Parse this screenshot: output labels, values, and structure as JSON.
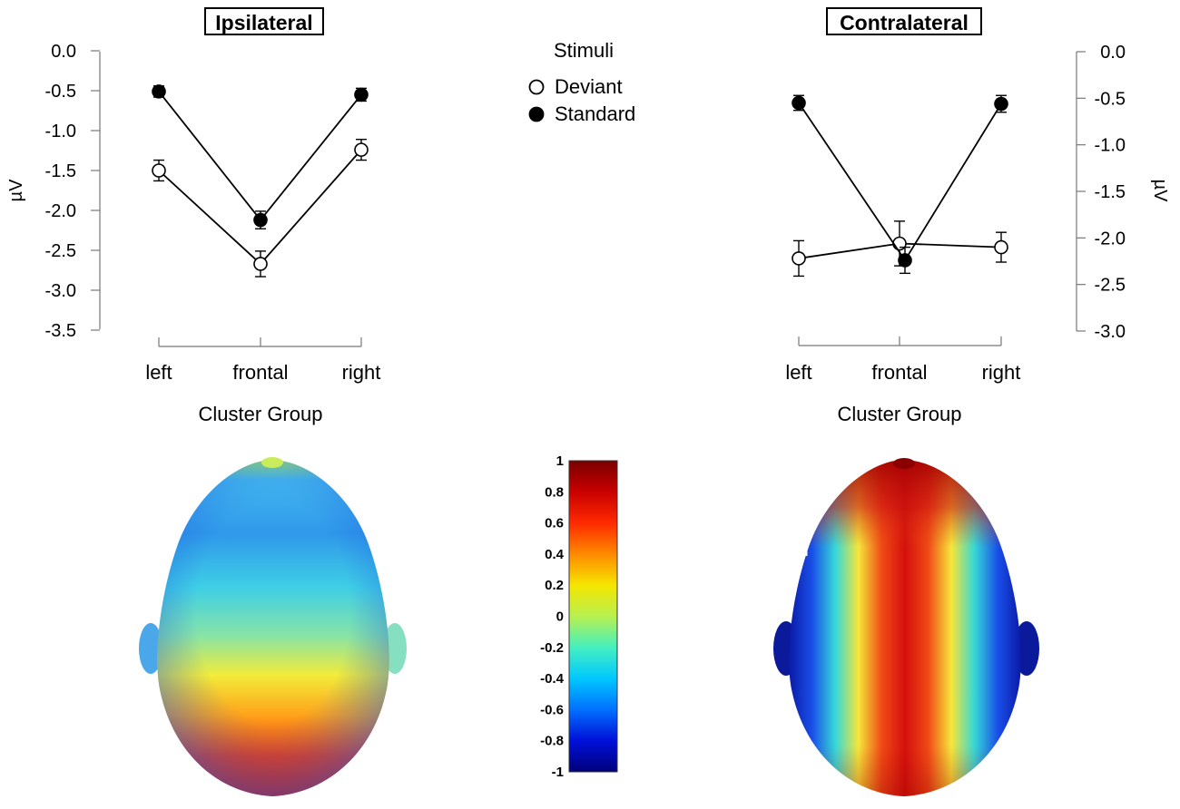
{
  "chart_data": [
    {
      "type": "line",
      "title": "Ipsilateral",
      "xlabel": "Cluster Group",
      "ylabel": "µV",
      "categories": [
        "left",
        "frontal",
        "right"
      ],
      "ylim": [
        -3.5,
        0.0
      ],
      "yticks": [
        "0.0",
        "-0.5",
        "-1.0",
        "-1.5",
        "-2.0",
        "-2.5",
        "-3.0",
        "-3.5"
      ],
      "series": [
        {
          "name": "Deviant",
          "marker": "open",
          "values": [
            -1.5,
            -2.67,
            -1.24
          ],
          "error": [
            0.13,
            0.16,
            0.13
          ]
        },
        {
          "name": "Standard",
          "marker": "filled",
          "values": [
            -0.51,
            -2.12,
            -0.55
          ],
          "error": [
            0.07,
            0.11,
            0.08
          ]
        }
      ]
    },
    {
      "type": "line",
      "title": "Contralateral",
      "xlabel": "Cluster Group",
      "ylabel": "µV",
      "categories": [
        "left",
        "frontal",
        "right"
      ],
      "ylim": [
        -3.0,
        0.0
      ],
      "yticks": [
        "0.0",
        "-0.5",
        "-1.0",
        "-1.5",
        "-2.0",
        "-2.5",
        "-3.0"
      ],
      "series": [
        {
          "name": "Deviant",
          "marker": "open",
          "values": [
            -2.22,
            -2.06,
            -2.1
          ],
          "error": [
            0.19,
            0.24,
            0.16
          ]
        },
        {
          "name": "Standard",
          "marker": "filled",
          "values": [
            -0.55,
            -2.24,
            -0.56
          ],
          "error": [
            0.08,
            0.14,
            0.09
          ]
        }
      ]
    }
  ],
  "legend": {
    "title": "Stimuli",
    "items": [
      {
        "label": "Deviant",
        "marker": "open"
      },
      {
        "label": "Standard",
        "marker": "filled"
      }
    ]
  },
  "colorbar": {
    "ticks": [
      "1",
      "0.8",
      "0.6",
      "0.4",
      "0.2",
      "0",
      "-0.2",
      "-0.4",
      "-0.6",
      "-0.8",
      "-1"
    ],
    "range": [
      -1,
      1
    ],
    "colors": [
      "#7a0000",
      "#c80000",
      "#ff2a00",
      "#ff8a00",
      "#f5e600",
      "#b8f050",
      "#45f0c0",
      "#00c8ff",
      "#0070ff",
      "#0010d8",
      "#00007a"
    ]
  },
  "topomaps": [
    {
      "side": "Ipsilateral",
      "style": "blue-front-red-back"
    },
    {
      "side": "Contralateral",
      "style": "red-midline-blue-sides"
    }
  ]
}
